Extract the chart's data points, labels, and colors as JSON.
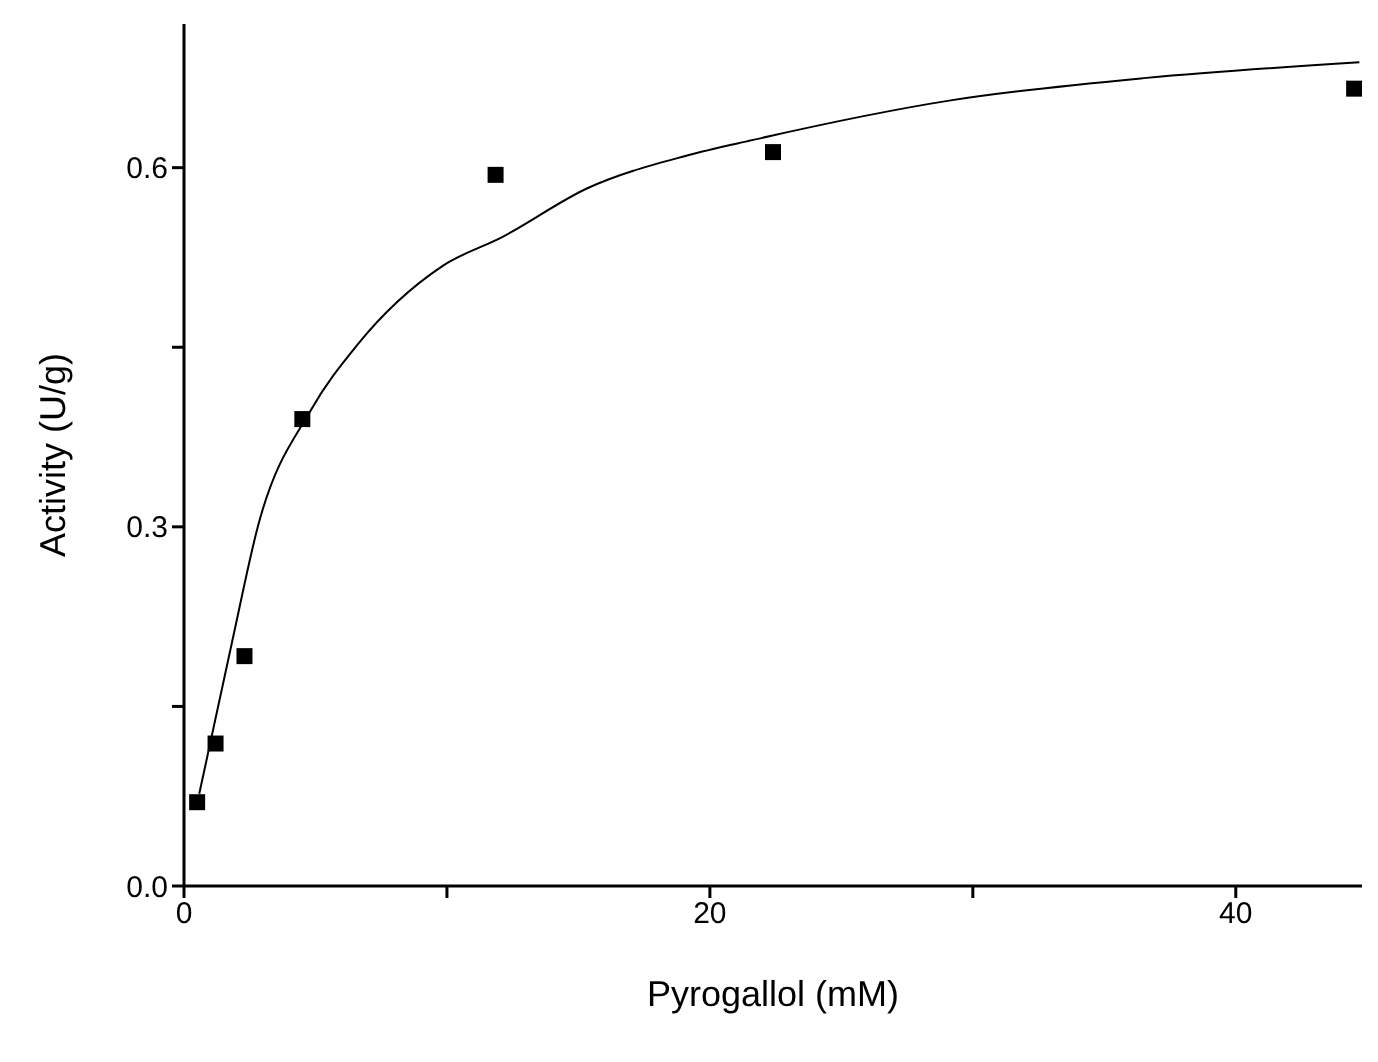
{
  "chart_data": {
    "type": "scatter",
    "xlabel": "Pyrogallol (mM)",
    "ylabel": "Activity (U/g)",
    "xlim": [
      0,
      44.8
    ],
    "xticks": [
      0,
      {
        "value": 10,
        "label": null
      },
      20,
      {
        "value": 30,
        "label": null
      },
      40
    ],
    "ylim": [
      0,
      0.72
    ],
    "yticks": [
      {
        "value": 0,
        "label": "0.0"
      },
      {
        "value": 0.15,
        "label": null
      },
      {
        "value": 0.3,
        "label": "0.3"
      },
      {
        "value": 0.45,
        "label": null
      },
      {
        "value": 0.6,
        "label": "0.6"
      }
    ],
    "series": [
      {
        "marker": "square",
        "color": "#000000",
        "x": [
          0.5,
          1.2,
          2.3,
          4.5,
          11.85,
          22.4,
          44.5
        ],
        "values": [
          0.07,
          0.119,
          0.192,
          0.39,
          0.594,
          0.613,
          0.666
        ]
      },
      {
        "type": "line",
        "color": "#000000",
        "x": [
          0.58,
          1.83,
          2.83,
          4.84,
          6.59,
          9.84,
          12.1,
          15.36,
          19.1,
          21.6,
          29.1,
          36.6,
          44.7
        ],
        "values": [
          0.077,
          0.204,
          0.302,
          0.398,
          0.452,
          0.518,
          0.542,
          0.583,
          0.61,
          0.623,
          0.656,
          0.675,
          0.688
        ]
      }
    ]
  }
}
